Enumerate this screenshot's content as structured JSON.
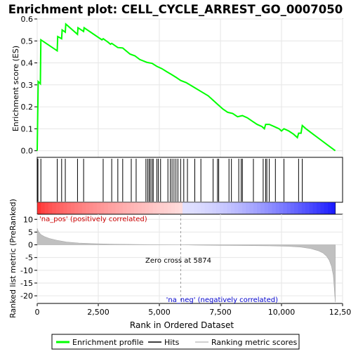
{
  "chart_data": {
    "type": "line",
    "title": "Enrichment plot: CELL_CYCLE_ARREST_GO_0007050",
    "xlabel": "Rank in Ordered Dataset",
    "es_ylabel": "Enrichment score (ES)",
    "metric_ylabel": "Ranked list metric (PreRanked)",
    "xlim": [
      0,
      12500
    ],
    "x_ticks": [
      0,
      2500,
      5000,
      7500,
      10000,
      12500
    ],
    "x_tick_labels": [
      "0",
      "2,500",
      "5,000",
      "7,500",
      "10,000",
      "12,500"
    ],
    "es_ylim": [
      -0.03,
      0.6
    ],
    "es_ticks": [
      0.0,
      0.1,
      0.2,
      0.3,
      0.4,
      0.5,
      0.6
    ],
    "es_tick_labels": [
      "0.0",
      "0.1",
      "0.2",
      "0.3",
      "0.4",
      "0.5",
      "0.6"
    ],
    "metric_ylim": [
      -23,
      12
    ],
    "metric_ticks": [
      10,
      5,
      0,
      -5,
      -10,
      -15,
      -20
    ],
    "metric_tick_labels": [
      "10",
      "5",
      "0",
      "-5",
      "-10",
      "-15",
      "-20"
    ],
    "total_genes": 12200,
    "zero_cross_rank": 5874,
    "zero_cross_label": "Zero cross at 5874",
    "pos_label": "'na_pos' (positively correlated)",
    "neg_label": "'na_neg' (negatively correlated)",
    "legend": [
      {
        "name": "Enrichment profile",
        "color": "#00ff00"
      },
      {
        "name": "Hits",
        "color": "#000000"
      },
      {
        "name": "Ranking metric scores",
        "color": "#c0c0c0"
      }
    ],
    "es_profile": {
      "x": [
        0,
        40,
        130,
        150,
        820,
        840,
        1000,
        1020,
        1150,
        1170,
        1650,
        1670,
        1900,
        1920,
        2650,
        2700,
        2900,
        3000,
        3050,
        3300,
        3500,
        3800,
        4000,
        4200,
        4500,
        4700,
        4900,
        5100,
        5300,
        5500,
        5700,
        5874,
        6100,
        6400,
        6700,
        7000,
        7200,
        7400,
        7600,
        7800,
        8000,
        8200,
        8400,
        8600,
        8800,
        9000,
        9200,
        9300,
        9350,
        9500,
        9700,
        9900,
        10000,
        10100,
        10300,
        10500,
        10650,
        10700,
        10800,
        10850,
        11000,
        11300,
        11600,
        11900,
        12200
      ],
      "y": [
        0.0,
        0.315,
        0.305,
        0.505,
        0.455,
        0.52,
        0.51,
        0.55,
        0.54,
        0.577,
        0.53,
        0.56,
        0.543,
        0.56,
        0.505,
        0.51,
        0.494,
        0.485,
        0.489,
        0.47,
        0.468,
        0.44,
        0.432,
        0.415,
        0.402,
        0.398,
        0.384,
        0.374,
        0.36,
        0.347,
        0.333,
        0.32,
        0.31,
        0.29,
        0.27,
        0.25,
        0.23,
        0.21,
        0.19,
        0.175,
        0.17,
        0.155,
        0.16,
        0.15,
        0.135,
        0.12,
        0.11,
        0.1,
        0.12,
        0.12,
        0.11,
        0.1,
        0.09,
        0.1,
        0.09,
        0.075,
        0.06,
        0.08,
        0.08,
        0.115,
        0.1,
        0.075,
        0.05,
        0.025,
        0.0
      ]
    },
    "hits": [
      30,
      150,
      820,
      1000,
      1150,
      1650,
      1900,
      2700,
      3050,
      3300,
      3500,
      3850,
      4050,
      4450,
      4520,
      4580,
      4630,
      4700,
      4750,
      4900,
      4960,
      5050,
      5350,
      5450,
      5520,
      5600,
      5680,
      5760,
      5870,
      6000,
      6150,
      6450,
      6700,
      7200,
      7380,
      7430,
      7850,
      7950,
      8250,
      8350,
      8400,
      8850,
      9250,
      9350,
      9400,
      9500,
      9750,
      10100,
      10700,
      10850
    ],
    "metric_curve": {
      "x": [
        0,
        50,
        150,
        300,
        500,
        800,
        1200,
        1700,
        2300,
        3000,
        4000,
        5000,
        5874,
        6500,
        7500,
        8500,
        9500,
        10300,
        10800,
        11200,
        11500,
        11700,
        11850,
        11950,
        12050,
        12120,
        12160,
        12200
      ],
      "y": [
        6.5,
        5.2,
        4.0,
        3.2,
        2.5,
        1.8,
        1.1,
        0.7,
        0.45,
        0.3,
        0.15,
        0.05,
        0.0,
        -0.1,
        -0.2,
        -0.3,
        -0.4,
        -0.6,
        -0.9,
        -1.5,
        -2.3,
        -3.2,
        -4.5,
        -6.0,
        -8.5,
        -12.0,
        -17.0,
        -22.5
      ]
    }
  }
}
